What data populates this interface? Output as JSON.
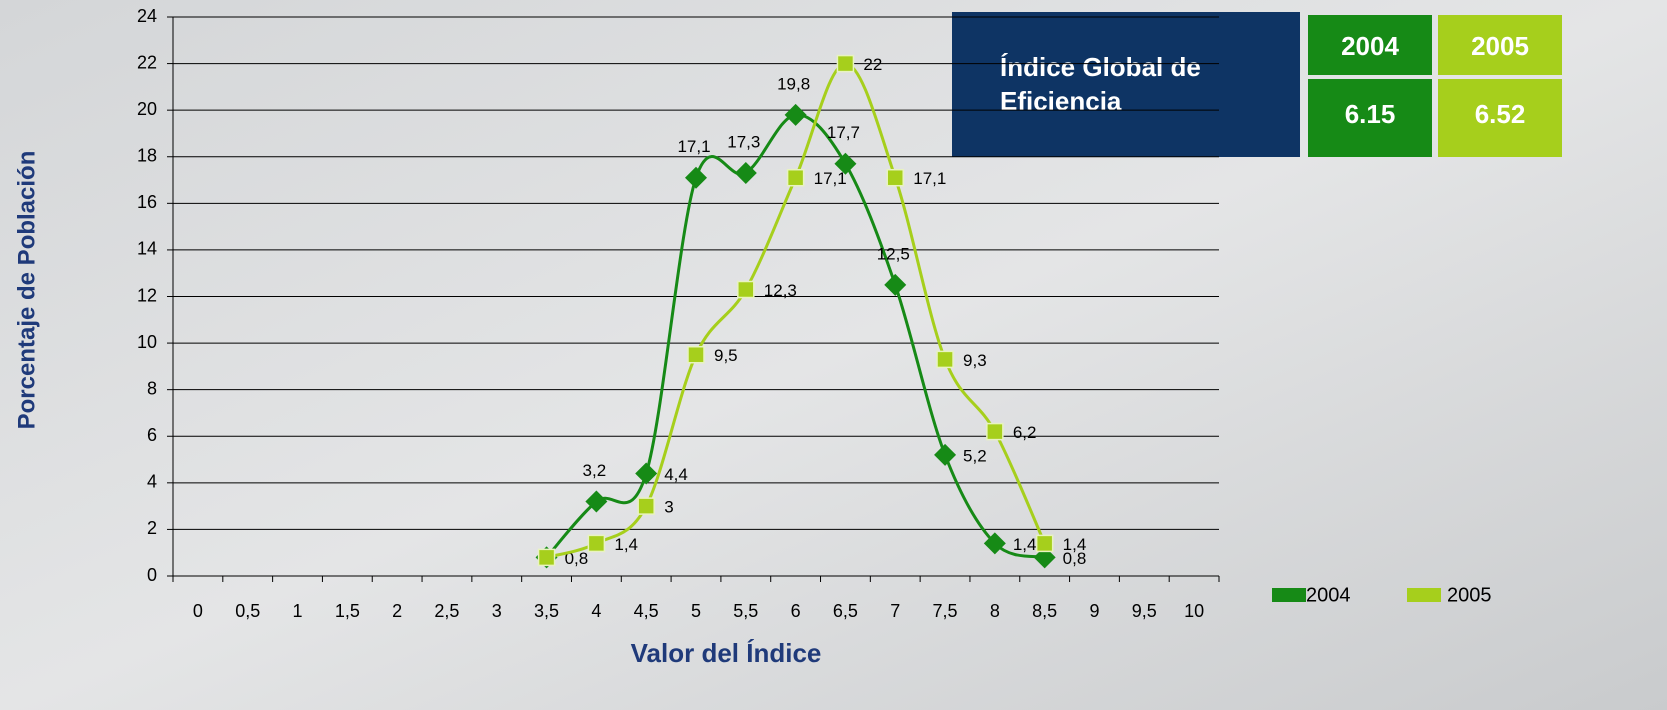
{
  "chart_data": {
    "type": "line",
    "y_label": "Porcentaje de Población",
    "x_label": "Valor del Índice",
    "categories": [
      "0",
      "0,5",
      "1",
      "1,5",
      "2",
      "2,5",
      "3",
      "3,5",
      "4",
      "4,5",
      "5",
      "5,5",
      "6",
      "6,5",
      "7",
      "7,5",
      "8",
      "8,5",
      "9",
      "9,5",
      "10"
    ],
    "series": [
      {
        "name": "2004",
        "color": "#168a16",
        "marker": "diamond",
        "values": [
          null,
          null,
          null,
          null,
          null,
          null,
          null,
          0.8,
          3.2,
          4.4,
          17.1,
          17.3,
          19.8,
          17.7,
          12.5,
          5.2,
          1.4,
          0.8,
          null,
          null,
          null
        ],
        "value_labels": [
          null,
          null,
          null,
          null,
          null,
          null,
          null,
          "0,8",
          "3,2",
          "4,4",
          "17,1",
          "17,3",
          "19,8",
          "17,7",
          "12,5",
          "5,2",
          "1,4",
          "0,8",
          null,
          null,
          null
        ]
      },
      {
        "name": "2005",
        "color": "#a6cf1c",
        "marker": "square",
        "values": [
          null,
          null,
          null,
          null,
          null,
          null,
          null,
          0.8,
          1.4,
          3,
          9.5,
          12.3,
          17.1,
          22,
          17.1,
          9.3,
          6.2,
          1.4,
          null,
          null,
          null
        ],
        "value_labels": [
          null,
          null,
          null,
          null,
          null,
          null,
          null,
          null,
          "1,4",
          "3",
          "9,5",
          "12,3",
          "17,1",
          "22",
          "17,1",
          "9,3",
          "6,2",
          "1,4",
          null,
          null,
          null
        ]
      }
    ],
    "ylim": [
      0,
      24
    ],
    "yticks": [
      0,
      2,
      4,
      6,
      8,
      10,
      12,
      14,
      16,
      18,
      20,
      22,
      24
    ],
    "grid": true
  },
  "table": {
    "title": "Índice Global de Eficiencia",
    "columns": [
      {
        "year": "2004",
        "value": "6.15"
      },
      {
        "year": "2005",
        "value": "6.52"
      }
    ]
  }
}
